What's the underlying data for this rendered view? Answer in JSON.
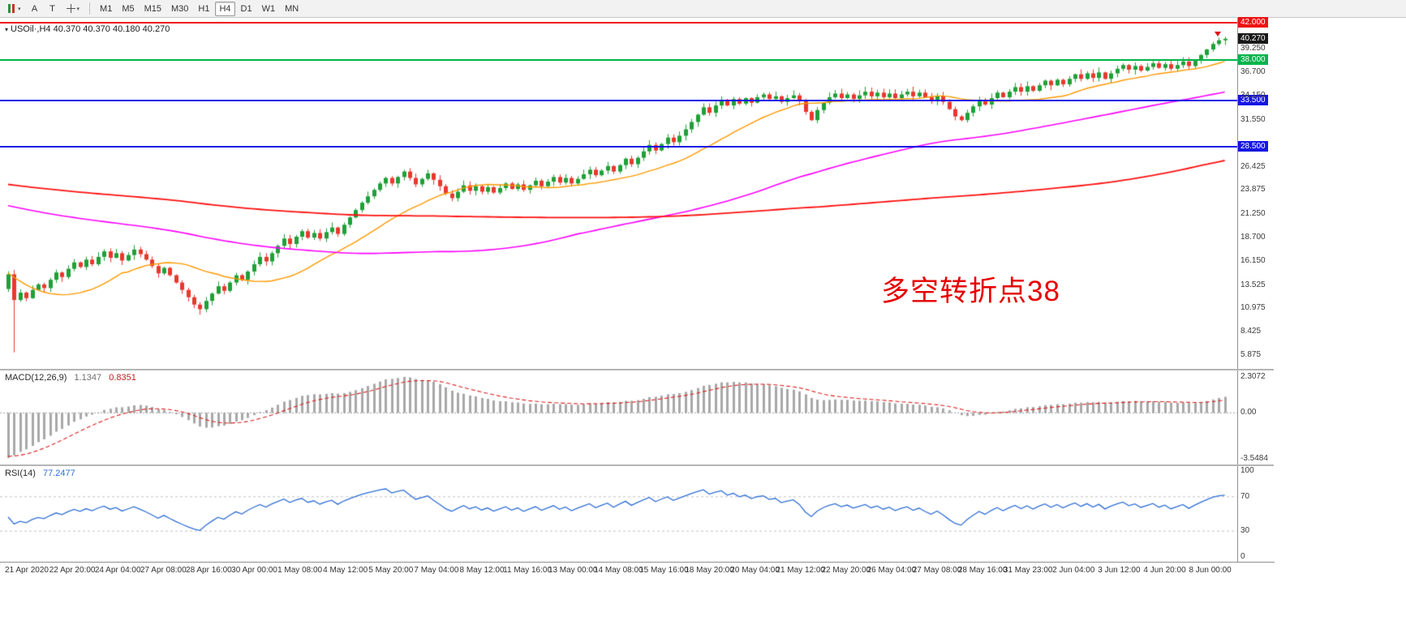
{
  "toolbar": {
    "chart_windows_tooltip": "charts",
    "pointer_button_label": "A",
    "text_button_label": "T",
    "caret": "▾",
    "timeframes": [
      "M1",
      "M5",
      "M15",
      "M30",
      "H1",
      "H4",
      "D1",
      "W1",
      "MN"
    ],
    "active_timeframe": "H4"
  },
  "chart_data": {
    "type": "candlestick",
    "symbol": "USOil",
    "timeframe": "H4",
    "title": "USOil·,H4 40.370 40.370 40.180 40.270",
    "annotation": {
      "text": "多空转折点38",
      "color": "#e60000"
    },
    "price_axis": {
      "min": 4.3,
      "max": 42.55,
      "labels": [
        "39.250",
        "36.700",
        "34.150",
        "31.550",
        "26.425",
        "23.875",
        "21.250",
        "18.700",
        "16.150",
        "13.525",
        "10.975",
        "8.425",
        "5.875"
      ]
    },
    "levels": [
      {
        "value": 42.0,
        "label": "42.000",
        "color": "#ee1111"
      },
      {
        "value": 38.0,
        "label": "38.000",
        "color": "#00b44a"
      },
      {
        "value": 33.5,
        "label": "33.500",
        "color": "#1515e6"
      },
      {
        "value": 28.5,
        "label": "28.500",
        "color": "#1515e6"
      }
    ],
    "current_price": {
      "value": 40.27,
      "label": "40.270",
      "bg": "#1a1a1a"
    },
    "candles": {
      "up_color": "#1fa037",
      "down_color": "#e8382e",
      "first_open": 13.0,
      "wick_lows": {
        "1": 6.1,
        "32": 10.2
      },
      "closes": [
        14.6,
        11.8,
        12.6,
        12.0,
        12.9,
        13.5,
        13.1,
        14.0,
        14.8,
        14.3,
        15.2,
        15.9,
        15.4,
        16.2,
        15.7,
        16.5,
        17.1,
        16.4,
        16.9,
        16.1,
        16.7,
        17.3,
        16.8,
        16.2,
        15.5,
        14.7,
        15.3,
        14.5,
        13.7,
        12.9,
        12.1,
        11.3,
        10.8,
        11.7,
        12.5,
        13.3,
        12.8,
        13.7,
        14.5,
        14.0,
        14.9,
        15.7,
        16.5,
        16.0,
        16.9,
        17.7,
        18.5,
        17.9,
        18.7,
        19.3,
        18.6,
        19.1,
        18.5,
        19.2,
        19.7,
        19.0,
        20.0,
        20.8,
        21.6,
        22.4,
        23.1,
        23.8,
        24.5,
        25.1,
        24.5,
        25.2,
        25.8,
        25.1,
        24.4,
        25.0,
        25.6,
        24.9,
        24.2,
        23.4,
        22.9,
        23.6,
        24.3,
        23.7,
        24.2,
        23.6,
        24.1,
        23.5,
        24.0,
        24.5,
        23.9,
        24.4,
        23.8,
        24.3,
        24.8,
        24.2,
        24.7,
        25.2,
        24.6,
        25.1,
        24.5,
        25.0,
        25.5,
        26.0,
        25.4,
        25.9,
        26.4,
        25.8,
        26.5,
        27.2,
        26.6,
        27.3,
        28.0,
        28.7,
        28.1,
        28.8,
        29.5,
        29.0,
        29.7,
        30.4,
        31.2,
        32.0,
        32.8,
        32.2,
        33.0,
        33.6,
        33.0,
        33.7,
        33.2,
        33.8,
        33.3,
        33.9,
        34.2,
        33.7,
        34.0,
        33.4,
        33.8,
        34.1,
        33.5,
        32.3,
        31.4,
        32.5,
        33.3,
        33.9,
        34.3,
        33.8,
        34.2,
        33.7,
        34.1,
        34.5,
        34.0,
        34.4,
        33.9,
        34.3,
        33.8,
        34.2,
        34.5,
        34.0,
        34.4,
        33.9,
        33.5,
        34.0,
        33.4,
        32.6,
        31.8,
        31.4,
        32.2,
        32.9,
        33.6,
        33.1,
        33.8,
        34.4,
        33.9,
        34.5,
        35.0,
        34.5,
        35.1,
        34.6,
        35.2,
        35.7,
        35.2,
        35.8,
        35.3,
        35.9,
        36.4,
        35.9,
        36.5,
        36.0,
        36.6,
        35.9,
        36.5,
        37.0,
        37.4,
        36.9,
        37.3,
        36.8,
        37.2,
        37.6,
        37.1,
        37.5,
        37.0,
        37.4,
        37.8,
        37.3,
        37.9,
        38.5,
        39.1,
        39.7,
        40.1,
        40.27
      ]
    },
    "moving_averages": [
      {
        "name": "fast-ma",
        "period": 20,
        "color": "#ff9900",
        "width": 1.4
      },
      {
        "name": "mid-ma",
        "period": 96,
        "color": "#ff00ff",
        "width": 1.6
      },
      {
        "name": "slow-ma",
        "period": 200,
        "color": "#ff1111",
        "width": 1.8
      }
    ],
    "render_hints": {
      "indicator_seed": {
        "flat_start": 28,
        "flat_end": 23,
        "flat_len": 180,
        "crash_end": 8,
        "crash_len": 20
      }
    },
    "macd": {
      "name": "MACD(12,26,9)",
      "value_main": "1.1347",
      "value_signal": "0.8351",
      "fast": 12,
      "slow": 26,
      "signal": 9,
      "axis_max": "2.3072",
      "axis_zero": "0.00",
      "axis_min": "-3.5484",
      "hist_color": "#a8a8a8",
      "signal_color": "#dd2020"
    },
    "rsi": {
      "name": "RSI(14)",
      "value": "77.2477",
      "period": 14,
      "axis": [
        "100",
        "70",
        "30",
        "0"
      ],
      "level_lines": [
        70,
        30
      ],
      "color": "#2f6fd6"
    },
    "time_labels": [
      "21 Apr 2020",
      "22 Apr 20:00",
      "24 Apr 04:00",
      "27 Apr 08:00",
      "28 Apr 16:00",
      "30 Apr 00:00",
      "1 May 08:00",
      "4 May 12:00",
      "5 May 20:00",
      "7 May 04:00",
      "8 May 12:00",
      "11 May 16:00",
      "13 May 00:00",
      "14 May 08:00",
      "15 May 16:00",
      "18 May 20:00",
      "20 May 04:00",
      "21 May 12:00",
      "22 May 20:00",
      "26 May 04:00",
      "27 May 08:00",
      "28 May 16:00",
      "31 May 23:00",
      "2 Jun 04:00",
      "3 Jun 12:00",
      "4 Jun 20:00",
      "8 Jun 00:00"
    ]
  }
}
